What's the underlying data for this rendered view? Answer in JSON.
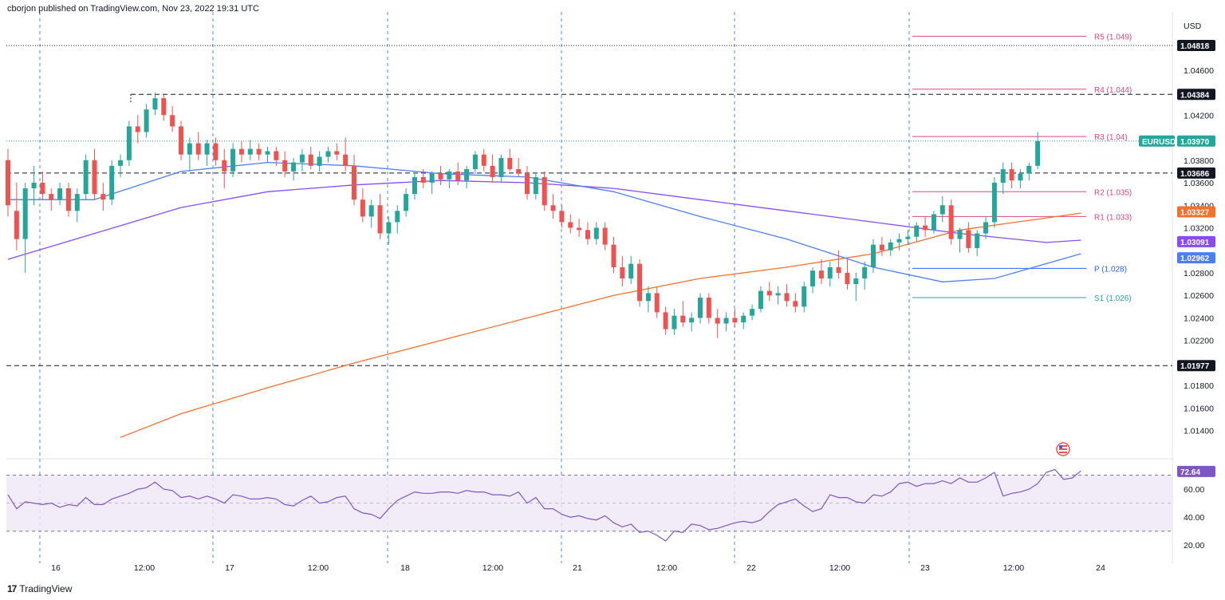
{
  "header": {
    "published": "cborjon published on TradingView.com, Nov 23, 2022 19:31 UTC"
  },
  "footer": {
    "brand": "TradingView",
    "logo_glyph": "17"
  },
  "colors": {
    "up": "#26a69a",
    "down": "#ef5350",
    "ema_short": "#4c7ef5",
    "ema_mid": "#8a4bf5",
    "ema_long": "#f5702a",
    "pivot_r": "#e0457b",
    "pivot_p": "#2962ff",
    "pivot_s": "#26a69a",
    "rsi": "#7e57c2",
    "rsi_band": "#ede7f6",
    "grid_v": "#2962ff"
  },
  "chart_data": {
    "type": "candlestick",
    "symbol": "EURUSD",
    "currency": "USD",
    "ylim": [
      1.0115,
      1.0508
    ],
    "price_ticks": [
      "1.04600",
      "1.04200",
      "1.03800",
      "1.03600",
      "1.03400",
      "1.03200",
      "1.02800",
      "1.02600",
      "1.02400",
      "1.02200",
      "1.01800",
      "1.01600",
      "1.01400"
    ],
    "x_ticks": [
      "16",
      "12:00",
      "17",
      "12:00",
      "18",
      "12:00",
      "21",
      "12:00",
      "22",
      "12:00",
      "23",
      "12:00",
      "24"
    ],
    "horizontal_levels": [
      "1.04818",
      "1.04384",
      "1.03686",
      "1.01977"
    ],
    "last_price": {
      "label": "EURUSD",
      "value": "1.03970"
    },
    "ma_tags": {
      "ema_long": "1.03327",
      "ema_mid": "1.03091",
      "ema_short": "1.02962"
    },
    "pivots": [
      {
        "name": "R5",
        "label": "R5 (1.049)",
        "value": 1.049
      },
      {
        "name": "R4",
        "label": "R4 (1.044)",
        "value": 1.0443
      },
      {
        "name": "R3",
        "label": "R3 (1.04)",
        "value": 1.0401
      },
      {
        "name": "R2",
        "label": "R2 (1.035)",
        "value": 1.0352
      },
      {
        "name": "R1",
        "label": "R1 (1.033)",
        "value": 1.033
      },
      {
        "name": "P",
        "label": "P (1.028)",
        "value": 1.0284
      },
      {
        "name": "S1",
        "label": "S1 (1.026)",
        "value": 1.0258
      }
    ],
    "candles": [
      [
        1.038,
        1.039,
        1.033,
        1.034
      ],
      [
        1.0335,
        1.036,
        1.03,
        1.031
      ],
      [
        1.031,
        1.036,
        1.028,
        1.0355
      ],
      [
        1.0355,
        1.0375,
        1.034,
        1.036
      ],
      [
        1.036,
        1.037,
        1.0345,
        1.035
      ],
      [
        1.035,
        1.0355,
        1.0335,
        1.0345
      ],
      [
        1.0345,
        1.036,
        1.034,
        1.0355
      ],
      [
        1.0355,
        1.036,
        1.033,
        1.0335
      ],
      [
        1.0335,
        1.0355,
        1.0325,
        1.035
      ],
      [
        1.035,
        1.0385,
        1.0345,
        1.038
      ],
      [
        1.038,
        1.039,
        1.0345,
        1.035
      ],
      [
        1.035,
        1.036,
        1.0335,
        1.0345
      ],
      [
        1.0345,
        1.038,
        1.034,
        1.0375
      ],
      [
        1.0375,
        1.0385,
        1.0365,
        1.038
      ],
      [
        1.038,
        1.0415,
        1.0375,
        1.041
      ],
      [
        1.041,
        1.042,
        1.0395,
        1.0405
      ],
      [
        1.0405,
        1.043,
        1.04,
        1.0425
      ],
      [
        1.0425,
        1.044,
        1.042,
        1.0435
      ],
      [
        1.0435,
        1.0438,
        1.0415,
        1.042
      ],
      [
        1.042,
        1.0428,
        1.0405,
        1.041
      ],
      [
        1.041,
        1.0415,
        1.038,
        1.0385
      ],
      [
        1.0385,
        1.04,
        1.037,
        1.0395
      ],
      [
        1.0395,
        1.0405,
        1.038,
        1.0385
      ],
      [
        1.0385,
        1.0398,
        1.0375,
        1.0395
      ],
      [
        1.0395,
        1.04,
        1.0375,
        1.038
      ],
      [
        1.038,
        1.039,
        1.0355,
        1.037
      ],
      [
        1.037,
        1.0395,
        1.0365,
        1.039
      ],
      [
        1.039,
        1.0397,
        1.0378,
        1.0385
      ],
      [
        1.0385,
        1.0398,
        1.038,
        1.039
      ],
      [
        1.039,
        1.0395,
        1.038,
        1.0385
      ],
      [
        1.0385,
        1.0392,
        1.0378,
        1.0388
      ],
      [
        1.0388,
        1.0392,
        1.0375,
        1.038
      ],
      [
        1.038,
        1.0388,
        1.0365,
        1.037
      ],
      [
        1.037,
        1.0382,
        1.0362,
        1.0378
      ],
      [
        1.0378,
        1.039,
        1.037,
        1.0385
      ],
      [
        1.0385,
        1.0392,
        1.0372,
        1.0375
      ],
      [
        1.0375,
        1.0388,
        1.037,
        1.0383
      ],
      [
        1.0383,
        1.0392,
        1.0378,
        1.0388
      ],
      [
        1.0388,
        1.0395,
        1.038,
        1.0385
      ],
      [
        1.0385,
        1.04,
        1.037,
        1.0375
      ],
      [
        1.0375,
        1.0385,
        1.034,
        1.0345
      ],
      [
        1.0345,
        1.0355,
        1.0325,
        1.033
      ],
      [
        1.033,
        1.0345,
        1.032,
        1.034
      ],
      [
        1.034,
        1.035,
        1.031,
        1.0315
      ],
      [
        1.0315,
        1.033,
        1.0305,
        1.0325
      ],
      [
        1.0325,
        1.034,
        1.0315,
        1.0335
      ],
      [
        1.0335,
        1.0355,
        1.033,
        1.035
      ],
      [
        1.035,
        1.0368,
        1.0345,
        1.0365
      ],
      [
        1.0365,
        1.0372,
        1.0355,
        1.036
      ],
      [
        1.036,
        1.037,
        1.035,
        1.0368
      ],
      [
        1.0368,
        1.0375,
        1.0358,
        1.0363
      ],
      [
        1.0363,
        1.0372,
        1.0355,
        1.037
      ],
      [
        1.037,
        1.0378,
        1.0358,
        1.0362
      ],
      [
        1.0362,
        1.0375,
        1.0355,
        1.0372
      ],
      [
        1.0372,
        1.0388,
        1.0368,
        1.0385
      ],
      [
        1.0385,
        1.039,
        1.037,
        1.0375
      ],
      [
        1.0375,
        1.0385,
        1.036,
        1.0365
      ],
      [
        1.0365,
        1.0385,
        1.036,
        1.0382
      ],
      [
        1.0382,
        1.039,
        1.037,
        1.0372
      ],
      [
        1.0372,
        1.0382,
        1.0365,
        1.0368
      ],
      [
        1.0368,
        1.0375,
        1.0345,
        1.035
      ],
      [
        1.035,
        1.0368,
        1.0345,
        1.0365
      ],
      [
        1.0365,
        1.037,
        1.0335,
        1.034
      ],
      [
        1.034,
        1.035,
        1.0328,
        1.0335
      ],
      [
        1.0335,
        1.034,
        1.032,
        1.0325
      ],
      [
        1.0325,
        1.0332,
        1.0315,
        1.032
      ],
      [
        1.032,
        1.0328,
        1.0312,
        1.0318
      ],
      [
        1.0318,
        1.0325,
        1.0305,
        1.031
      ],
      [
        1.031,
        1.0325,
        1.0305,
        1.032
      ],
      [
        1.032,
        1.0325,
        1.03,
        1.0305
      ],
      [
        1.0305,
        1.0312,
        1.028,
        1.0285
      ],
      [
        1.0285,
        1.0295,
        1.0268,
        1.0275
      ],
      [
        1.0275,
        1.0295,
        1.027,
        1.0288
      ],
      [
        1.0288,
        1.0292,
        1.025,
        1.0255
      ],
      [
        1.0255,
        1.0268,
        1.0245,
        1.0262
      ],
      [
        1.0262,
        1.0268,
        1.024,
        1.0245
      ],
      [
        1.0245,
        1.025,
        1.0225,
        1.023
      ],
      [
        1.023,
        1.0248,
        1.0225,
        1.0242
      ],
      [
        1.0242,
        1.0255,
        1.0232,
        1.0236
      ],
      [
        1.0236,
        1.0245,
        1.0228,
        1.024
      ],
      [
        1.024,
        1.0262,
        1.0235,
        1.0258
      ],
      [
        1.0258,
        1.0262,
        1.0235,
        1.024
      ],
      [
        1.024,
        1.0248,
        1.0222,
        1.0235
      ],
      [
        1.0235,
        1.0245,
        1.0228,
        1.024
      ],
      [
        1.024,
        1.0248,
        1.0232,
        1.0236
      ],
      [
        1.0236,
        1.0245,
        1.023,
        1.0242
      ],
      [
        1.0242,
        1.0252,
        1.0238,
        1.0248
      ],
      [
        1.0248,
        1.0268,
        1.0245,
        1.0264
      ],
      [
        1.0264,
        1.0272,
        1.0255,
        1.026
      ],
      [
        1.026,
        1.0268,
        1.0252,
        1.0262
      ],
      [
        1.0262,
        1.027,
        1.025,
        1.0255
      ],
      [
        1.0255,
        1.0262,
        1.0245,
        1.025
      ],
      [
        1.025,
        1.0272,
        1.0245,
        1.0268
      ],
      [
        1.0268,
        1.0285,
        1.0262,
        1.0282
      ],
      [
        1.0282,
        1.0292,
        1.027,
        1.0275
      ],
      [
        1.0275,
        1.029,
        1.0268,
        1.0285
      ],
      [
        1.0285,
        1.03,
        1.0275,
        1.028
      ],
      [
        1.028,
        1.0292,
        1.0265,
        1.027
      ],
      [
        1.027,
        1.028,
        1.0255,
        1.0275
      ],
      [
        1.0275,
        1.029,
        1.0265,
        1.0285
      ],
      [
        1.0285,
        1.031,
        1.028,
        1.0305
      ],
      [
        1.0305,
        1.0312,
        1.0295,
        1.03
      ],
      [
        1.03,
        1.031,
        1.0295,
        1.0307
      ],
      [
        1.0307,
        1.0315,
        1.03,
        1.031
      ],
      [
        1.031,
        1.0318,
        1.0305,
        1.0312
      ],
      [
        1.0312,
        1.0325,
        1.0308,
        1.0322
      ],
      [
        1.0322,
        1.033,
        1.0312,
        1.0318
      ],
      [
        1.0318,
        1.0335,
        1.0315,
        1.0332
      ],
      [
        1.0332,
        1.0348,
        1.0325,
        1.034
      ],
      [
        1.034,
        1.0345,
        1.0305,
        1.031
      ],
      [
        1.031,
        1.032,
        1.0298,
        1.0318
      ],
      [
        1.0318,
        1.0325,
        1.0298,
        1.0302
      ],
      [
        1.0302,
        1.0318,
        1.0295,
        1.0315
      ],
      [
        1.0315,
        1.033,
        1.031,
        1.0325
      ],
      [
        1.0325,
        1.0365,
        1.032,
        1.036
      ],
      [
        1.036,
        1.0378,
        1.035,
        1.0372
      ],
      [
        1.0372,
        1.0378,
        1.0355,
        1.0362
      ],
      [
        1.0362,
        1.0372,
        1.0355,
        1.0368
      ],
      [
        1.0368,
        1.0378,
        1.0362,
        1.0375
      ],
      [
        1.0375,
        1.0405,
        1.0372,
        1.0397
      ]
    ],
    "ema_short": [
      [
        0,
        1.0345
      ],
      [
        10,
        1.0345
      ],
      [
        20,
        1.037
      ],
      [
        30,
        1.0378
      ],
      [
        40,
        1.0375
      ],
      [
        50,
        1.0368
      ],
      [
        60,
        1.0365
      ],
      [
        70,
        1.0352
      ],
      [
        80,
        1.033
      ],
      [
        90,
        1.031
      ],
      [
        100,
        1.0285
      ],
      [
        108,
        1.0272
      ],
      [
        114,
        1.0275
      ],
      [
        124,
        1.0297
      ]
    ],
    "ema_mid": [
      [
        0,
        1.0292
      ],
      [
        10,
        1.0315
      ],
      [
        20,
        1.0338
      ],
      [
        30,
        1.0352
      ],
      [
        40,
        1.0358
      ],
      [
        50,
        1.0362
      ],
      [
        60,
        1.036
      ],
      [
        70,
        1.0355
      ],
      [
        80,
        1.0345
      ],
      [
        90,
        1.0335
      ],
      [
        100,
        1.0325
      ],
      [
        110,
        1.0315
      ],
      [
        120,
        1.0307
      ],
      [
        124,
        1.0309
      ]
    ],
    "ema_long": [
      [
        13,
        1.0134
      ],
      [
        20,
        1.0155
      ],
      [
        30,
        1.0178
      ],
      [
        40,
        1.02
      ],
      [
        50,
        1.022
      ],
      [
        60,
        1.024
      ],
      [
        70,
        1.026
      ],
      [
        80,
        1.0275
      ],
      [
        90,
        1.0285
      ],
      [
        100,
        1.0297
      ],
      [
        110,
        1.0318
      ],
      [
        124,
        1.0333
      ]
    ],
    "rsi": {
      "ylim": [
        15,
        80
      ],
      "ticks": [
        "60.00",
        "40.00",
        "20.00"
      ],
      "overbought": 70,
      "oversold": 30,
      "last": "72.64",
      "values": [
        56,
        46,
        51,
        50,
        49,
        50,
        47,
        49,
        48,
        54,
        49,
        49,
        53,
        55,
        57,
        60,
        61,
        65,
        60,
        59,
        54,
        55,
        53,
        55,
        53,
        50,
        56,
        55,
        53,
        53,
        54,
        53,
        49,
        48,
        52,
        55,
        50,
        51,
        54,
        55,
        46,
        43,
        42,
        39,
        46,
        52,
        55,
        58,
        57,
        57,
        58,
        58,
        57,
        59,
        58,
        58,
        56,
        56,
        55,
        58,
        50,
        54,
        46,
        46,
        42,
        40,
        41,
        39,
        38,
        41,
        36,
        33,
        35,
        29,
        30,
        27,
        23,
        30,
        29,
        35,
        34,
        31,
        32,
        34,
        36,
        37,
        36,
        38,
        44,
        49,
        51,
        53,
        48,
        44,
        46,
        56,
        54,
        54,
        51,
        50,
        56,
        55,
        58,
        64,
        65,
        62,
        64,
        64,
        66,
        64,
        68,
        65,
        65,
        68,
        72,
        55,
        57,
        58,
        60,
        64,
        72,
        74,
        67,
        68,
        73
      ]
    }
  }
}
